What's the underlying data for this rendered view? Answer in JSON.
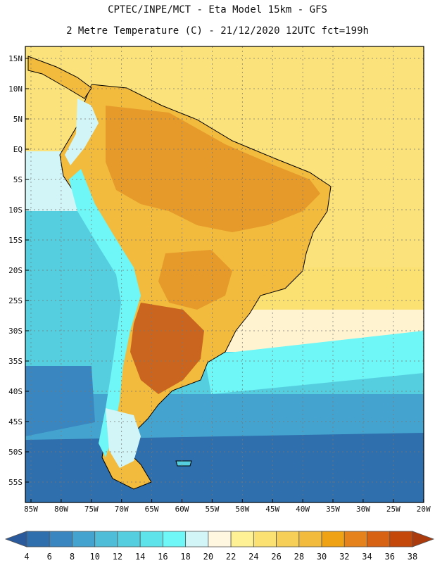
{
  "title_line1": "CPTEC/INPE/MCT  -   Eta Model 15km - GFS",
  "title_line2": "2 Metre Temperature (C) - 21/12/2020 12UTC fct=199h",
  "lat_labels": [
    "15N",
    "10N",
    "5N",
    "EQ",
    "5S",
    "10S",
    "15S",
    "20S",
    "25S",
    "30S",
    "35S",
    "40S",
    "45S",
    "50S",
    "55S"
  ],
  "lon_labels": [
    "85W",
    "80W",
    "75W",
    "70W",
    "65W",
    "60W",
    "55W",
    "50W",
    "45W",
    "40W",
    "35W",
    "30W",
    "25W",
    "20W"
  ],
  "colorbar": {
    "labels": [
      "4",
      "6",
      "8",
      "10",
      "12",
      "14",
      "16",
      "18",
      "20",
      "22",
      "24",
      "26",
      "28",
      "30",
      "32",
      "34",
      "36",
      "38"
    ],
    "colors": [
      "#2a5a9c",
      "#2f6fad",
      "#3a86c0",
      "#45a4cf",
      "#4fbcd8",
      "#55cfe0",
      "#5ee3eb",
      "#6ff6f6",
      "#d2f5f7",
      "#fff7df",
      "#fdf095",
      "#fbe171",
      "#f6cf58",
      "#f2bb3d",
      "#f0a215",
      "#e5821c",
      "#d86214",
      "#c4480a",
      "#ab3a0d"
    ]
  },
  "field_colors": {
    "ocean_deep": "#2f6fad",
    "ocean_mid": "#45a4cf",
    "ocean_cyan": "#55cfe0",
    "ocean_light": "#d2f5f7",
    "ocean_warm": "#fbe171",
    "ocean_tropical": "#fce27a",
    "land_hot": "#f2bb3d",
    "land_hotter": "#e59a2a",
    "land_very_hot": "#c9651e",
    "andes_cold": "#6ff6f6",
    "andes_mid": "#f6cf58"
  }
}
